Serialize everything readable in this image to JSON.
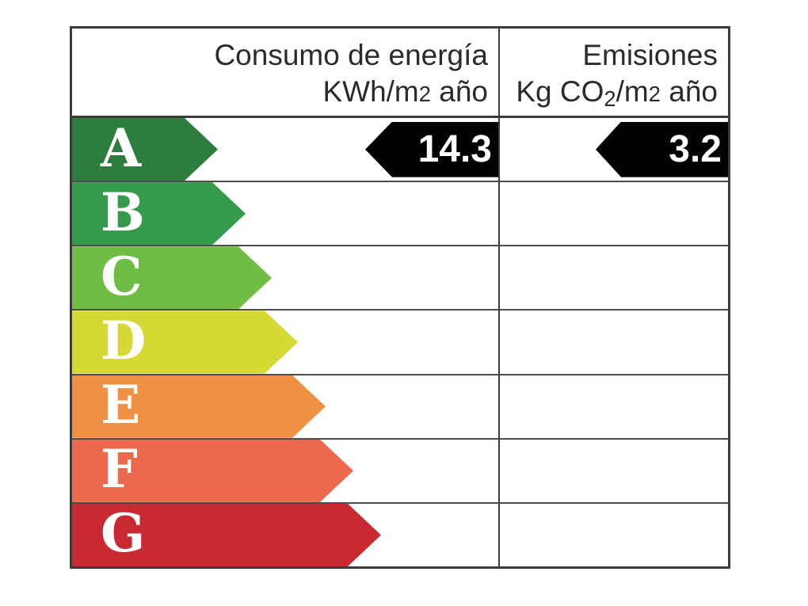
{
  "header": {
    "consumption_line1": "Consumo de energía",
    "consumption_line2_pre": "KWh/m",
    "consumption_line2_num": "2",
    "consumption_line2_post": " año",
    "emissions_line1": "Emisiones",
    "emissions_line2_pre": "Kg CO",
    "emissions_line2_sub": "2",
    "emissions_line2_mid": "/m",
    "emissions_line2_num": "2",
    "emissions_line2_post": " año"
  },
  "scale": [
    {
      "letter": "A",
      "color": "#2d7d3f",
      "arrow_width": 184
    },
    {
      "letter": "B",
      "color": "#359a4b",
      "arrow_width": 219
    },
    {
      "letter": "C",
      "color": "#70bd45",
      "arrow_width": 252
    },
    {
      "letter": "D",
      "color": "#d6d933",
      "arrow_width": 285
    },
    {
      "letter": "E",
      "color": "#ef9143",
      "arrow_width": 320
    },
    {
      "letter": "F",
      "color": "#ec694e",
      "arrow_width": 355
    },
    {
      "letter": "G",
      "color": "#c92a31",
      "arrow_width": 390
    }
  ],
  "result": {
    "rating_letter": "A",
    "consumption_value": "14.3",
    "emissions_value": "3.2",
    "arrow_color": "#000000",
    "text_color": "#ffffff"
  }
}
